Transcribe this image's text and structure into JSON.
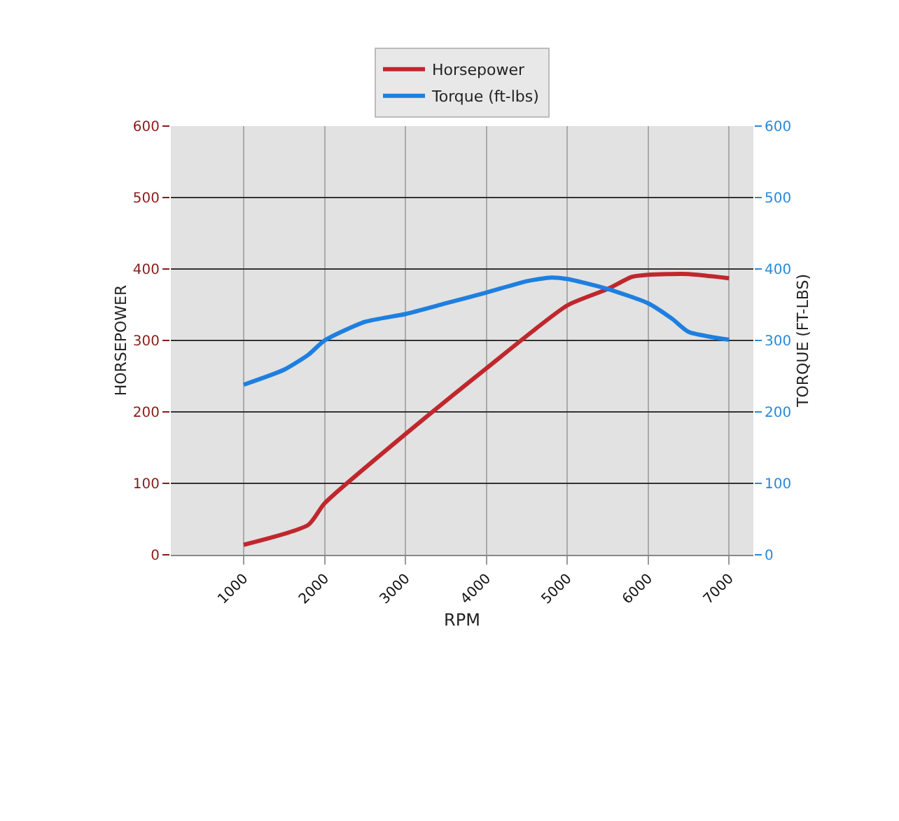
{
  "chart_data": {
    "type": "line",
    "xlabel": "RPM",
    "ylabel": "HORSEPOWER",
    "y2label": "TORQUE (FT-LBS)",
    "xlim": [
      100,
      7300
    ],
    "xticks": [
      1000,
      2000,
      3000,
      4000,
      5000,
      6000,
      7000
    ],
    "ylim": [
      0,
      600
    ],
    "yticks": [
      0,
      100,
      200,
      300,
      400,
      500,
      600
    ],
    "y2lim": [
      0,
      600
    ],
    "y2ticks": [
      0,
      100,
      200,
      300,
      400,
      500,
      600
    ],
    "series": [
      {
        "name": "Horsepower",
        "color": "#c0272d",
        "x": [
          1000,
          1800,
          2000,
          3000,
          4000,
          5000,
          5500,
          5800,
          6000,
          6500,
          7000
        ],
        "values": [
          14,
          42,
          72,
          169,
          261,
          349,
          372,
          389,
          392,
          393,
          387
        ]
      },
      {
        "name": "Torque (ft-lbs)",
        "color": "#1e7fe0",
        "axis": "y2",
        "x": [
          1000,
          1500,
          1800,
          2000,
          2500,
          3000,
          3500,
          4000,
          4500,
          4800,
          5000,
          5500,
          6000,
          6300,
          6500,
          7000
        ],
        "values": [
          238,
          259,
          280,
          300,
          326,
          337,
          352,
          367,
          383,
          388,
          386,
          372,
          352,
          330,
          312,
          301
        ]
      }
    ],
    "grid": true,
    "legend": "top",
    "marker": "none",
    "line_style": "solid"
  }
}
